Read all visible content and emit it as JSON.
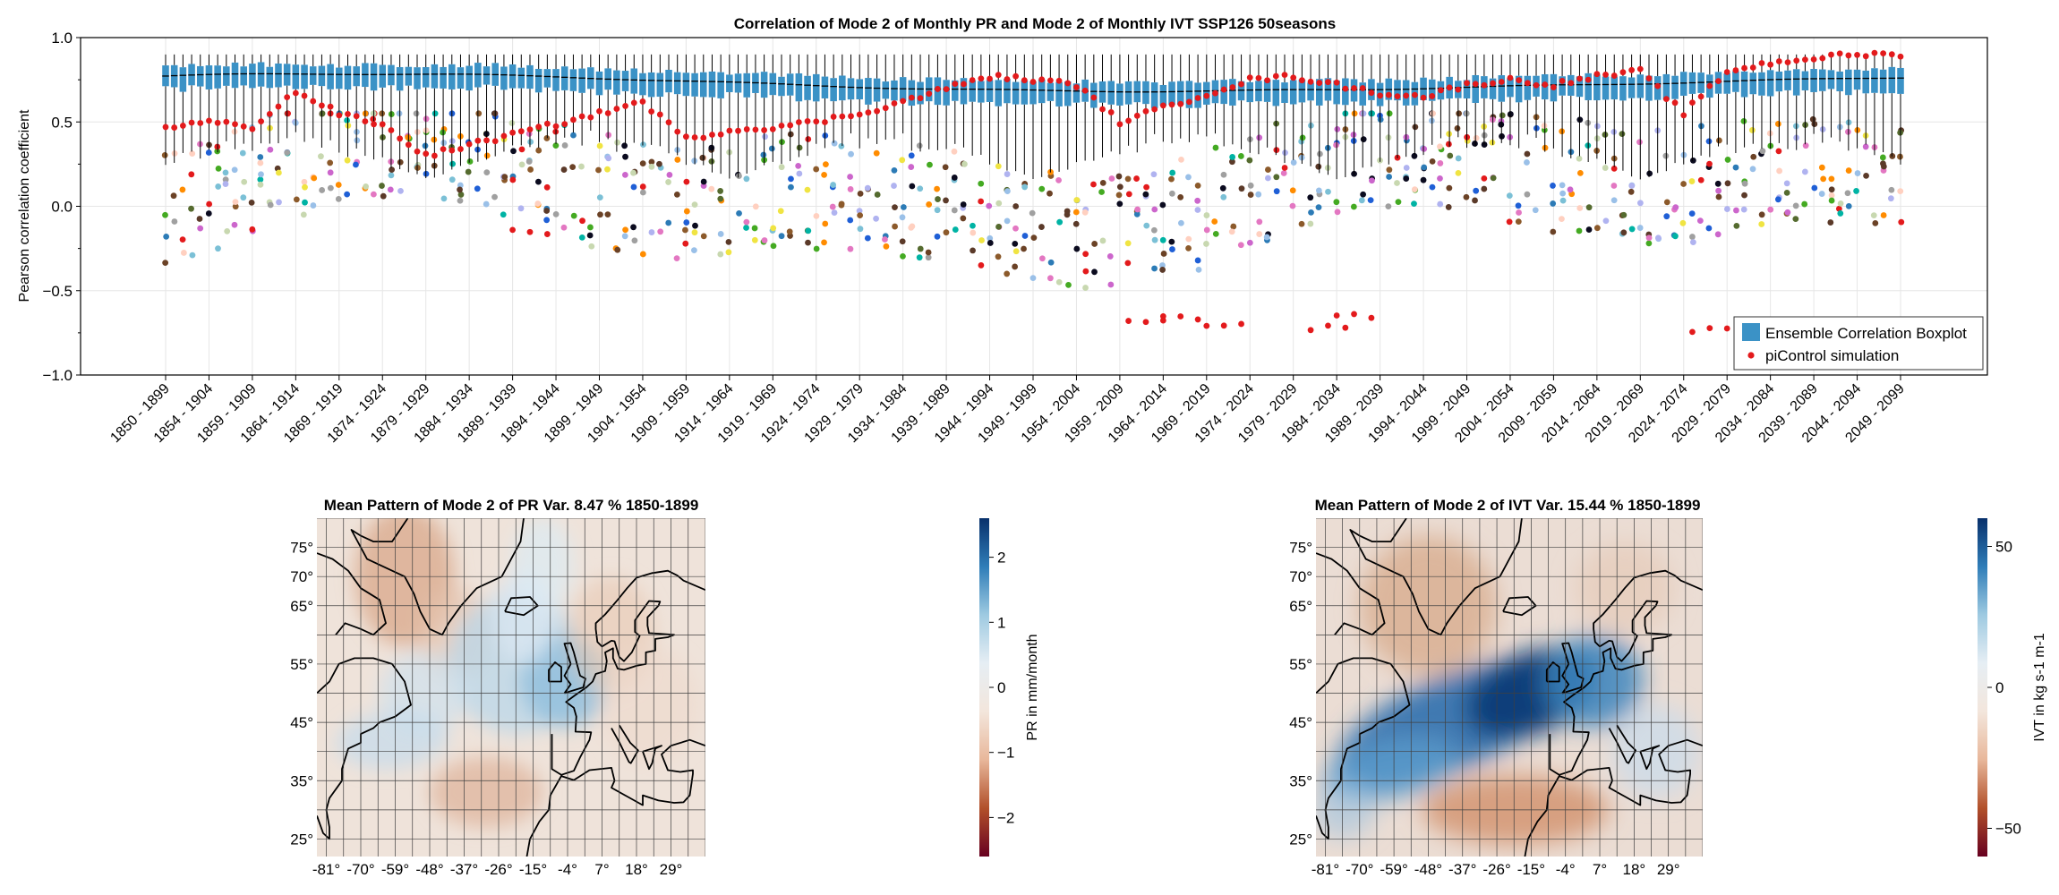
{
  "colors": {
    "box_fill": "#3b92c6",
    "median_line": "#000000",
    "whisker": "#000000",
    "picontrol": "#e31a1c",
    "grid": "#e6e6e6",
    "frame": "#000000",
    "map_grid": "#404040",
    "coast": "#000000",
    "colormap": [
      "#67001f",
      "#b2502a",
      "#e8b79a",
      "#f3e6dc",
      "#e6eef4",
      "#9ecae1",
      "#2f7db8",
      "#08306b"
    ],
    "member_palette": [
      "#0b0b1f",
      "#e31a1c",
      "#00b3a4",
      "#1f5fd6",
      "#f0e442",
      "#c8d8b0",
      "#b0b3f0",
      "#8c5a2b",
      "#ff8c00",
      "#44aa22",
      "#e377c2",
      "#a0a0a0",
      "#6b4226",
      "#7bc0d6",
      "#2c7bb6",
      "#cc66cc",
      "#556b2f",
      "#ffd0c0",
      "#5b3a29",
      "#9ac0e8"
    ]
  },
  "chart_data": [
    {
      "type": "box",
      "title": "Correlation of Mode 2 of Monthly PR and Mode 2 of Monthly IVT SSP126 50seasons",
      "ylabel": "Pearson correlation coefficient",
      "xlabel": "",
      "ylim": [
        -1.0,
        1.0
      ],
      "yticks": [
        -1.0,
        -0.5,
        0.0,
        0.5,
        1.0
      ],
      "ytick_labels": [
        "−1.0",
        "−0.5",
        "0.0",
        "0.5",
        "1.0"
      ],
      "grid": true,
      "legend_position": "bottom-right",
      "legend": [
        {
          "label": "Ensemble Correlation Boxplot",
          "marker": "box"
        },
        {
          "label": "piControl simulation",
          "marker": "dot"
        }
      ],
      "window_count": 201,
      "first_window": [
        1850,
        1899
      ],
      "last_window": [
        2050,
        2099
      ],
      "x_tick_labels": [
        "1850 - 1899",
        "1854 - 1904",
        "1859 - 1909",
        "1864 - 1914",
        "1869 - 1919",
        "1874 - 1924",
        "1879 - 1929",
        "1884 - 1934",
        "1889 - 1939",
        "1894 - 1944",
        "1899 - 1949",
        "1904 - 1954",
        "1909 - 1959",
        "1914 - 1964",
        "1919 - 1969",
        "1924 - 1974",
        "1929 - 1979",
        "1934 - 1984",
        "1939 - 1989",
        "1944 - 1994",
        "1949 - 1999",
        "1954 - 2004",
        "1959 - 2009",
        "1964 - 2014",
        "1969 - 2019",
        "1974 - 2024",
        "1979 - 2029",
        "1984 - 2034",
        "1989 - 2039",
        "1994 - 2044",
        "1999 - 2049",
        "2004 - 2054",
        "2009 - 2059",
        "2014 - 2064",
        "2019 - 2069",
        "2024 - 2074",
        "2029 - 2079",
        "2034 - 2084",
        "2039 - 2089",
        "2044 - 2094",
        "2049 - 2099"
      ],
      "boxplot_summary": {
        "median_range": [
          0.68,
          0.78
        ],
        "q1_range": [
          0.6,
          0.72
        ],
        "q3_range": [
          0.76,
          0.84
        ],
        "whisker_high": 0.9,
        "whisker_low_range": [
          0.0,
          0.45
        ]
      },
      "picontrol": [
        [
          1850,
          0.47
        ],
        [
          1855,
          0.5
        ],
        [
          1860,
          0.47
        ],
        [
          1865,
          0.68
        ],
        [
          1870,
          0.55
        ],
        [
          1875,
          0.48
        ],
        [
          1880,
          0.3
        ],
        [
          1885,
          0.2
        ],
        [
          1890,
          -0.15
        ],
        [
          1895,
          0.0
        ],
        [
          1900,
          0.55
        ],
        [
          1905,
          0.62
        ],
        [
          1910,
          0.4
        ],
        [
          1915,
          0.45
        ],
        [
          1920,
          0.47
        ],
        [
          1925,
          0.5
        ],
        [
          1930,
          0.55
        ],
        [
          1935,
          0.62
        ],
        [
          1940,
          0.7
        ],
        [
          1945,
          0.77
        ],
        [
          1950,
          0.75
        ],
        [
          1955,
          0.72
        ],
        [
          1960,
          0.5
        ],
        [
          1961,
          -0.68
        ],
        [
          1965,
          -0.66
        ],
        [
          1970,
          -0.7
        ],
        [
          1975,
          0.75
        ],
        [
          1980,
          0.77
        ],
        [
          1982,
          -0.72
        ],
        [
          1985,
          -0.65
        ],
        [
          1990,
          0.67
        ],
        [
          1995,
          0.65
        ],
        [
          2000,
          0.72
        ],
        [
          2005,
          0.75
        ],
        [
          2010,
          0.72
        ],
        [
          2015,
          0.77
        ],
        [
          2020,
          0.8
        ],
        [
          2025,
          0.55
        ],
        [
          2026,
          -0.73
        ],
        [
          2030,
          0.8
        ],
        [
          2035,
          0.85
        ],
        [
          2040,
          0.88
        ],
        [
          2045,
          0.9
        ],
        [
          2050,
          0.9
        ]
      ],
      "ensemble_members_summary": "Scatter of ensemble member correlations, mostly between -0.5 and 0.5"
    },
    {
      "type": "heatmap",
      "title": "Mean Pattern of Mode 2 of PR Var. 8.47 % 1850-1899",
      "colorbar_label": "PR in mm/month",
      "colorbar_range": [
        -2.6,
        2.6
      ],
      "colorbar_ticks": [
        2,
        1,
        0,
        -1,
        -2
      ],
      "colorbar_tick_labels": [
        "2",
        "1",
        "0",
        "−1",
        "−2"
      ],
      "lat_range": [
        22,
        80
      ],
      "lon_range": [
        -84,
        40
      ],
      "lat_ticks": [
        "75°",
        "70°",
        "65°",
        "55°",
        "45°",
        "35°",
        "25°"
      ],
      "lat_tick_values": [
        75,
        70,
        65,
        55,
        45,
        35,
        25
      ],
      "lon_ticks": [
        "-81°",
        "-70°",
        "-59°",
        "-48°",
        "-37°",
        "-26°",
        "-15°",
        "-4°",
        "7°",
        "18°",
        "29°"
      ],
      "lon_tick_values": [
        -81,
        -70,
        -59,
        -48,
        -37,
        -26,
        -15,
        -4,
        7,
        18,
        29
      ],
      "pattern": "positive (blue) band over the North Atlantic from 60N/-40W to Northern Europe, negative (brown) over Greenland and the subtropical Atlantic near 30N"
    },
    {
      "type": "heatmap",
      "title": "Mean Pattern of Mode 2 of IVT Var. 15.44 % 1850-1899",
      "colorbar_label": "IVT in kg s-1 m-1",
      "colorbar_range": [
        -60,
        60
      ],
      "colorbar_ticks": [
        50,
        0,
        -50
      ],
      "colorbar_tick_labels": [
        "50",
        "0",
        "−50"
      ],
      "lat_range": [
        22,
        80
      ],
      "lon_range": [
        -84,
        40
      ],
      "lat_ticks": [
        "75°",
        "70°",
        "65°",
        "55°",
        "45°",
        "35°",
        "25°"
      ],
      "lat_tick_values": [
        75,
        70,
        65,
        55,
        45,
        35,
        25
      ],
      "lon_ticks": [
        "-81°",
        "-70°",
        "-59°",
        "-48°",
        "-37°",
        "-26°",
        "-15°",
        "-4°",
        "7°",
        "18°",
        "29°"
      ],
      "lon_tick_values": [
        -81,
        -70,
        -59,
        -48,
        -37,
        -26,
        -15,
        -4,
        7,
        18,
        29
      ],
      "pattern": "strong positive (dark blue) jet-like band from the US east coast (35N) to the British Isles and Europe (50N), negative (brown) over Greenland and the subtropics"
    }
  ]
}
